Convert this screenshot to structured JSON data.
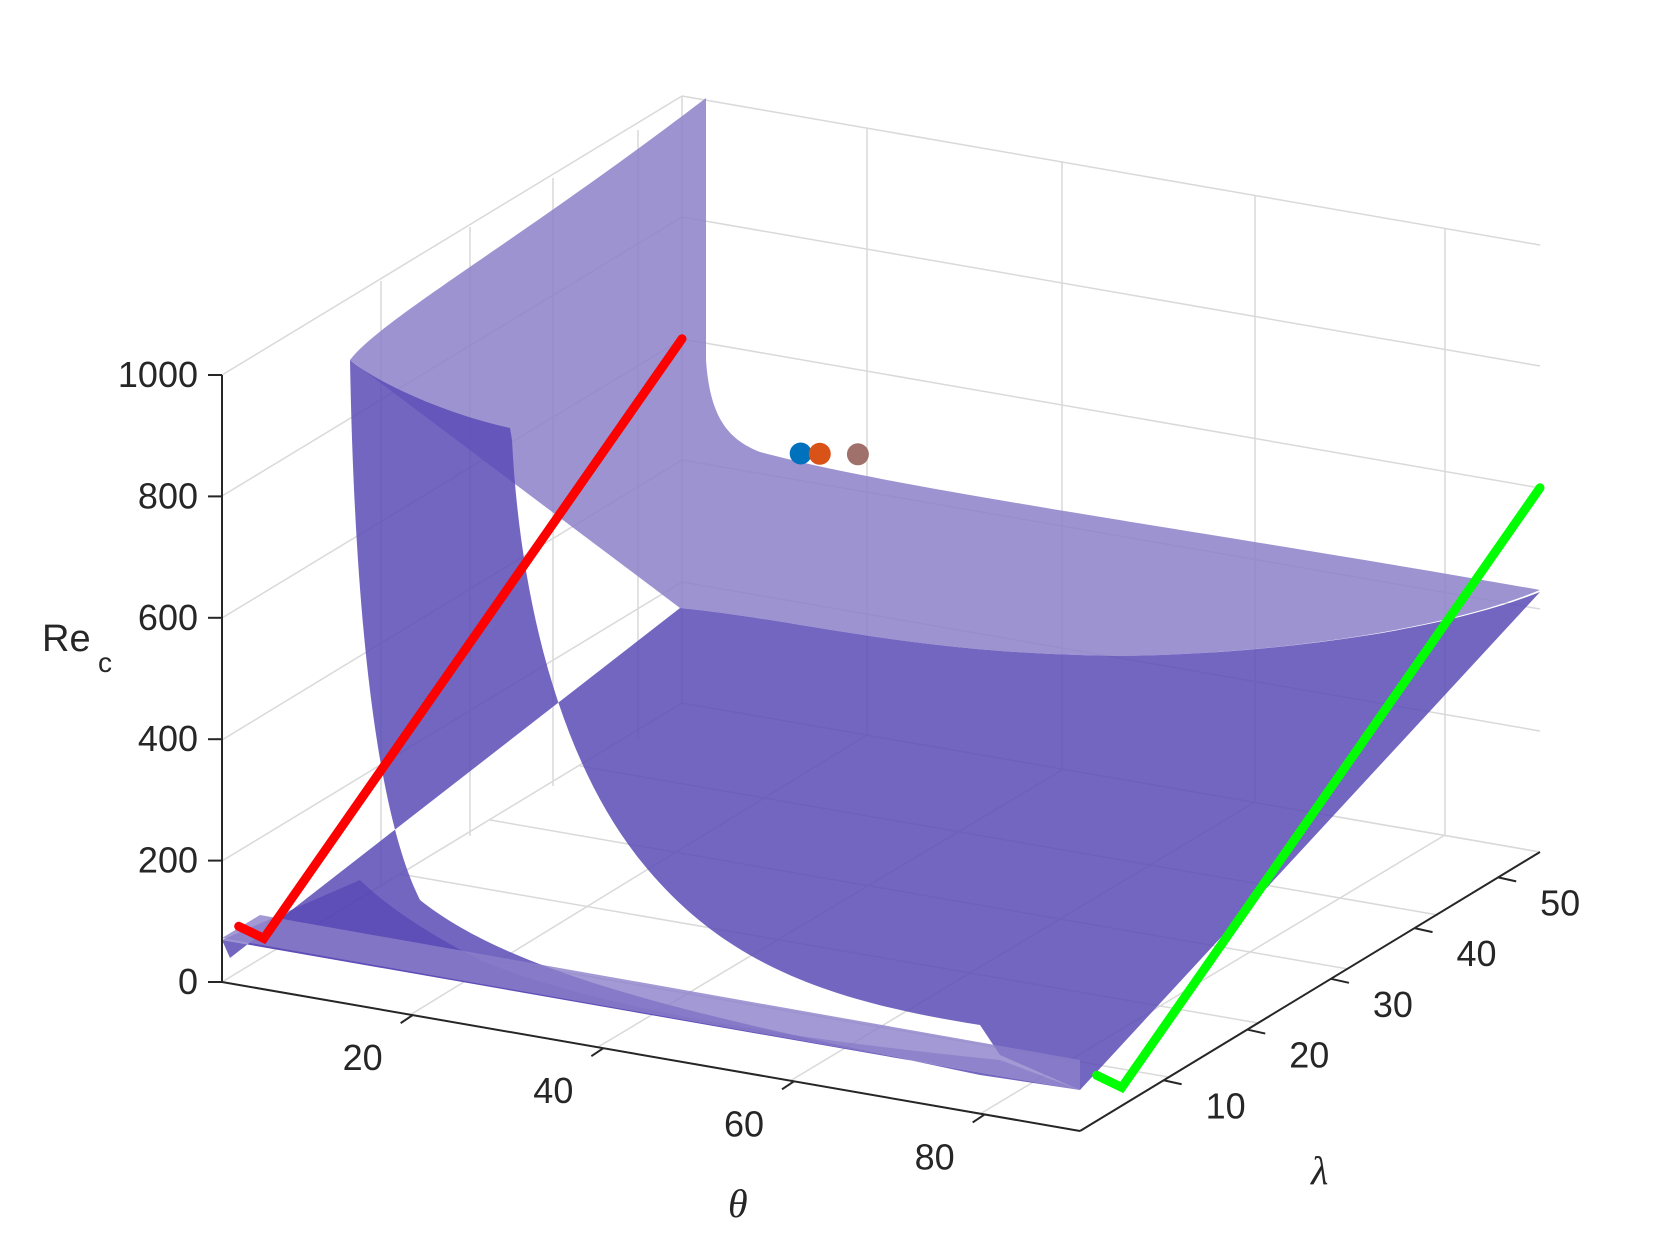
{
  "chart_data": {
    "type": "surface3d",
    "title": "",
    "xlabel": "θ",
    "ylabel": "λ",
    "zlabel": "Re",
    "zlabel_subscript": "c",
    "xlim": [
      0,
      90
    ],
    "ylim": [
      0,
      55
    ],
    "zlim": [
      0,
      1000
    ],
    "xticks": [
      20,
      40,
      60,
      80
    ],
    "yticks": [
      10,
      20,
      30,
      40,
      50
    ],
    "zticks": [
      0,
      200,
      400,
      600,
      800,
      1000
    ],
    "grid": true,
    "colors": {
      "surface_light": "#8c80c9",
      "surface_dark": "#5546b3",
      "curve_red": "#ff0000",
      "curve_green": "#00ff00",
      "axis": "#262626",
      "grid": "#d9d9d9"
    },
    "curves": [
      {
        "color": "#ff0000",
        "theta": 0,
        "points_lambda_re": [
          [
            2,
            75
          ],
          [
            5,
            30
          ],
          [
            55,
            600
          ]
        ]
      },
      {
        "color": "#00ff00",
        "theta": 90,
        "points_lambda_re": [
          [
            2,
            75
          ],
          [
            5,
            30
          ],
          [
            55,
            600
          ]
        ]
      }
    ],
    "markers": [
      {
        "color": "#0072bd",
        "theta": 30,
        "lambda": 35,
        "re": 660
      },
      {
        "color": "#d95319",
        "theta": 32,
        "lambda": 35,
        "re": 665
      },
      {
        "color": "#a0716a",
        "theta": 36,
        "lambda": 35,
        "re": 675
      }
    ]
  }
}
